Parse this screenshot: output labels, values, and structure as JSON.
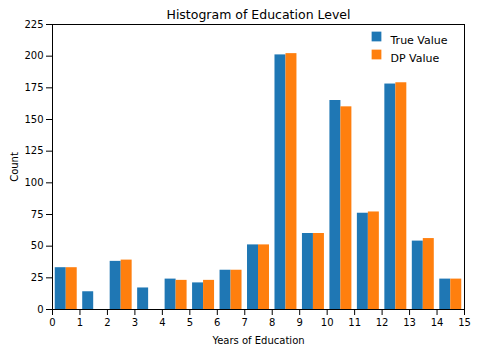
{
  "chart_data": {
    "type": "histogram",
    "title": "Histogram of Education Level",
    "x_label": "Years of Education",
    "y_label": "Count",
    "bins": [
      0,
      1,
      2,
      3,
      4,
      5,
      6,
      7,
      8,
      9,
      10,
      11,
      12,
      13,
      14,
      15
    ],
    "series": [
      {
        "name": "True Value",
        "color": "#1f77b4",
        "values": [
          33,
          14,
          38,
          17,
          24,
          21,
          31,
          51,
          201,
          60,
          165,
          76,
          178,
          54,
          24
        ]
      },
      {
        "name": "DP Value",
        "color": "#ff7f0e",
        "values": [
          33,
          0,
          39,
          0,
          23,
          23,
          31,
          51,
          202,
          60,
          160,
          77,
          179,
          56,
          24
        ]
      }
    ],
    "xlim": [
      0,
      15
    ],
    "xticks": [
      0,
      1,
      2,
      3,
      4,
      5,
      6,
      7,
      8,
      9,
      10,
      11,
      12,
      13,
      14,
      15
    ],
    "ylim": [
      0,
      225
    ],
    "yticks": [
      0,
      25,
      50,
      75,
      100,
      125,
      150,
      175,
      200,
      225
    ],
    "grid": false,
    "legend": "upper right"
  }
}
